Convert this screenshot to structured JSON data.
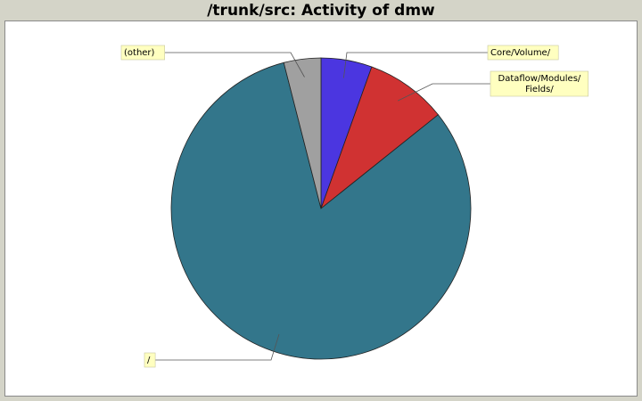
{
  "chart_data": {
    "type": "pie",
    "title": "/trunk/src: Activity of dmw",
    "slices": [
      {
        "label": "Core/Volume/",
        "value": 5.5,
        "color": "#4b36e0"
      },
      {
        "label": "Dataflow/Modules/Fields/",
        "value": 8.8,
        "color": "#d03232"
      },
      {
        "label": "/",
        "value": 81.7,
        "color": "#33768b"
      },
      {
        "label": "(other)",
        "value": 4.0,
        "color": "#a0a0a0"
      }
    ],
    "start_angle_deg": 0,
    "direction": "clockwise",
    "legend": "callout labels"
  }
}
